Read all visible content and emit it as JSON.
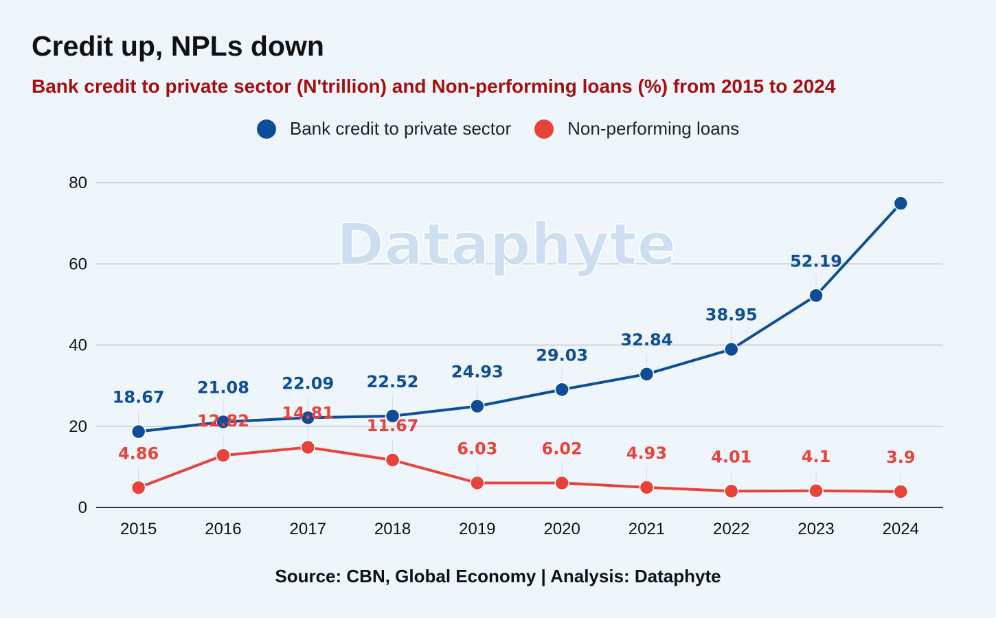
{
  "header": {
    "title": "Credit up, NPLs down",
    "subtitle": "Bank credit to private sector (N'trillion) and Non-performing loans (%) from 2015 to 2024"
  },
  "legend": {
    "items": [
      {
        "label": "Bank credit to private sector",
        "color": "#0f4e97"
      },
      {
        "label": "Non-performing loans",
        "color": "#e8433a"
      }
    ]
  },
  "watermark": "Dataphyte",
  "source": "Source: CBN, Global Economy | Analysis: Dataphyte",
  "chart_data": {
    "type": "line",
    "title": "Credit up, NPLs down",
    "subtitle": "Bank credit to private sector (N'trillion) and Non-performing loans (%) from 2015 to 2024",
    "categories": [
      "2015",
      "2016",
      "2017",
      "2018",
      "2019",
      "2020",
      "2021",
      "2022",
      "2023",
      "2024"
    ],
    "ylim": [
      0,
      80
    ],
    "yticks": [
      0,
      20,
      40,
      60,
      80
    ],
    "grid": true,
    "legend_position": "top-center",
    "series": [
      {
        "name": "Bank credit to private sector",
        "color": "#0f4e97",
        "values": [
          18.67,
          21.08,
          22.09,
          22.52,
          24.93,
          29.03,
          32.84,
          38.95,
          52.19,
          74.9
        ],
        "labels": [
          "18.67",
          "21.08",
          "22.09",
          "22.52",
          "24.93",
          "29.03",
          "32.84",
          "38.95",
          "52.19",
          ""
        ]
      },
      {
        "name": "Non-performing loans",
        "color": "#e8433a",
        "values": [
          4.86,
          12.82,
          14.81,
          11.67,
          6.03,
          6.02,
          4.93,
          4.01,
          4.1,
          3.9
        ],
        "labels": [
          "4.86",
          "12.82",
          "14.81",
          "11.67",
          "6.03",
          "6.02",
          "4.93",
          "4.01",
          "4.1",
          "3.9"
        ]
      }
    ]
  }
}
